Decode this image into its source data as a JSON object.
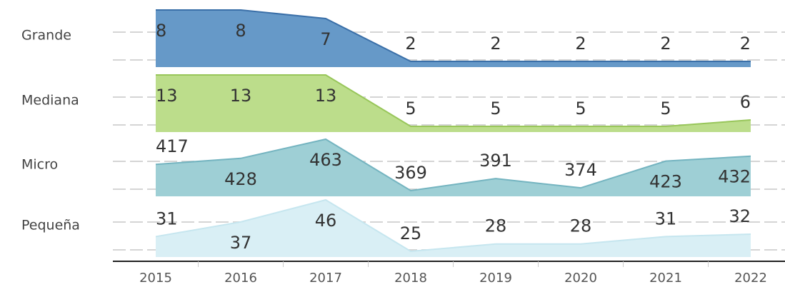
{
  "chart_data": {
    "type": "area",
    "categories": [
      "2015",
      "2016",
      "2017",
      "2018",
      "2019",
      "2020",
      "2021",
      "2022"
    ],
    "series": [
      {
        "name": "Grande",
        "color": "#6699c8",
        "stroke": "#3a6fa8",
        "values": [
          8,
          8,
          7,
          2,
          2,
          2,
          2,
          2
        ]
      },
      {
        "name": "Mediana",
        "color": "#bcdd8b",
        "stroke": "#98c65a",
        "values": [
          13,
          13,
          13,
          5,
          5,
          5,
          5,
          6
        ]
      },
      {
        "name": "Micro",
        "color": "#9ecfd5",
        "stroke": "#74b4c0",
        "values": [
          417,
          428,
          463,
          369,
          391,
          374,
          423,
          432
        ]
      },
      {
        "name": "Pequeña",
        "color": "#d9eff5",
        "stroke": "#c6e6ef",
        "values": [
          31,
          37,
          46,
          25,
          28,
          28,
          31,
          32
        ]
      }
    ]
  }
}
